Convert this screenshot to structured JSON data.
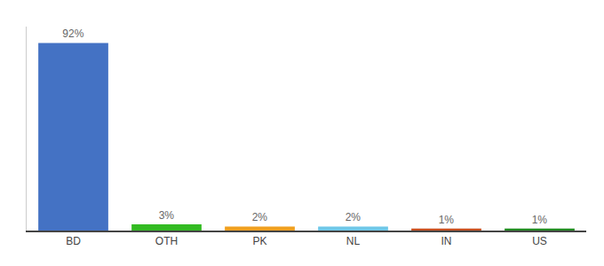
{
  "chart_data": {
    "type": "bar",
    "categories": [
      "BD",
      "OTH",
      "PK",
      "NL",
      "IN",
      "US"
    ],
    "values": [
      92,
      3,
      2,
      2,
      1,
      1
    ],
    "value_labels": [
      "92%",
      "3%",
      "2%",
      "2%",
      "1%",
      "1%"
    ],
    "colors": [
      "#4472c4",
      "#33bb22",
      "#f0a020",
      "#70c8e8",
      "#c85020",
      "#228B22"
    ],
    "ylim": [
      0,
      100
    ],
    "data_labels": true,
    "tick_labels": "x",
    "grid": false
  }
}
